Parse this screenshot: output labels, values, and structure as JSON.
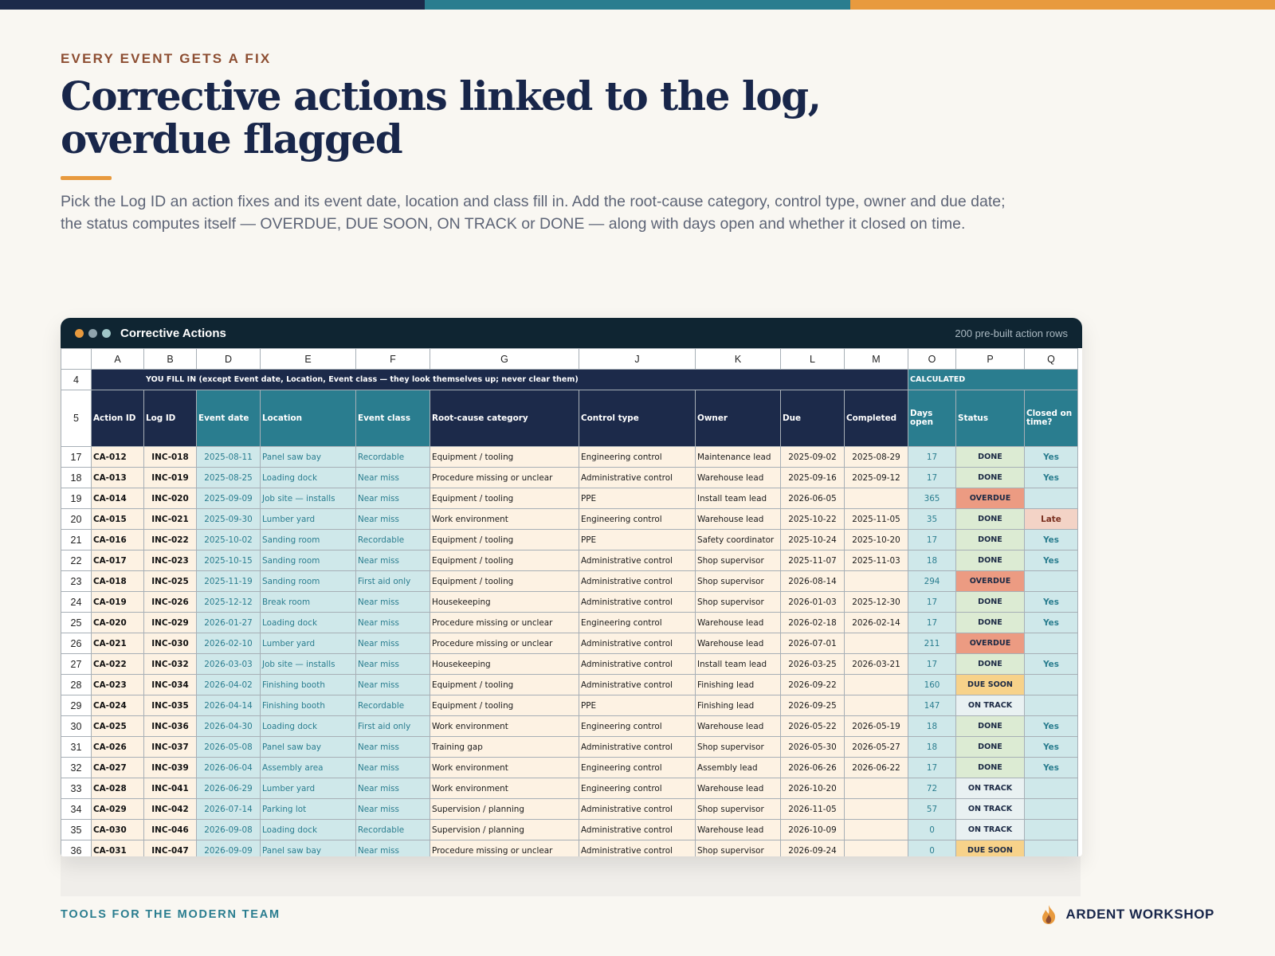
{
  "colors": {
    "navy": "#1c2a4a",
    "teal": "#2a7d8f",
    "orange": "#e89a3e",
    "input_fill": "#fdf2e3",
    "lookup_fill": "#cfe8ea"
  },
  "page": {
    "eyebrow": "EVERY EVENT GETS A FIX",
    "title": "Corrective actions linked to the log, overdue flagged",
    "description": "Pick the Log ID an action fixes and its event date, location and class fill in. Add the root-cause category, control type, owner and due date; the status computes itself — OVERDUE, DUE SOON, ON TRACK or DONE — along with days open and whether it closed on time."
  },
  "window": {
    "title": "Corrective Actions",
    "subtitle": "200 pre-built action rows"
  },
  "sheet": {
    "col_letters": [
      "A",
      "B",
      "D",
      "E",
      "F",
      "G",
      "J",
      "K",
      "L",
      "M",
      "O",
      "P",
      "Q"
    ],
    "band_row": "4",
    "band_fill": "YOU FILL IN  (except Event date, Location, Event class — they look themselves up; never clear them)",
    "band_calc": "CALCULATED",
    "header_row": "5",
    "headers": [
      "Action ID",
      "Log ID",
      "Event date",
      "Location",
      "Event class",
      "Root-cause category",
      "Control type",
      "Owner",
      "Due",
      "Completed",
      "Days open",
      "Status",
      "Closed on time?"
    ],
    "status_colors": {
      "DONE": "#dcebd3",
      "OVERDUE": "#ec9b82",
      "DUE SOON": "#f7d28a",
      "ON TRACK": "#e9f1f2"
    },
    "rows": [
      {
        "row": "17",
        "id": "CA-012",
        "log": "INC-018",
        "date": "2025-08-11",
        "loc": "Panel saw bay",
        "cls": "Recordable",
        "cause": "Equipment / tooling",
        "ctrl": "Engineering control",
        "owner": "Maintenance lead",
        "due": "2025-09-02",
        "done": "2025-08-29",
        "days": "17",
        "status": "DONE",
        "closed": "Yes"
      },
      {
        "row": "18",
        "id": "CA-013",
        "log": "INC-019",
        "date": "2025-08-25",
        "loc": "Loading dock",
        "cls": "Near miss",
        "cause": "Procedure missing or unclear",
        "ctrl": "Administrative control",
        "owner": "Warehouse lead",
        "due": "2025-09-16",
        "done": "2025-09-12",
        "days": "17",
        "status": "DONE",
        "closed": "Yes"
      },
      {
        "row": "19",
        "id": "CA-014",
        "log": "INC-020",
        "date": "2025-09-09",
        "loc": "Job site — installs",
        "cls": "Near miss",
        "cause": "Equipment / tooling",
        "ctrl": "PPE",
        "owner": "Install team lead",
        "due": "2026-06-05",
        "done": "",
        "days": "365",
        "status": "OVERDUE",
        "closed": ""
      },
      {
        "row": "20",
        "id": "CA-015",
        "log": "INC-021",
        "date": "2025-09-30",
        "loc": "Lumber yard",
        "cls": "Near miss",
        "cause": "Work environment",
        "ctrl": "Engineering control",
        "owner": "Warehouse lead",
        "due": "2025-10-22",
        "done": "2025-11-05",
        "days": "35",
        "status": "DONE",
        "closed": "Late"
      },
      {
        "row": "21",
        "id": "CA-016",
        "log": "INC-022",
        "date": "2025-10-02",
        "loc": "Sanding room",
        "cls": "Recordable",
        "cause": "Equipment / tooling",
        "ctrl": "PPE",
        "owner": "Safety coordinator",
        "due": "2025-10-24",
        "done": "2025-10-20",
        "days": "17",
        "status": "DONE",
        "closed": "Yes"
      },
      {
        "row": "22",
        "id": "CA-017",
        "log": "INC-023",
        "date": "2025-10-15",
        "loc": "Sanding room",
        "cls": "Near miss",
        "cause": "Equipment / tooling",
        "ctrl": "Administrative control",
        "owner": "Shop supervisor",
        "due": "2025-11-07",
        "done": "2025-11-03",
        "days": "18",
        "status": "DONE",
        "closed": "Yes"
      },
      {
        "row": "23",
        "id": "CA-018",
        "log": "INC-025",
        "date": "2025-11-19",
        "loc": "Sanding room",
        "cls": "First aid only",
        "cause": "Equipment / tooling",
        "ctrl": "Administrative control",
        "owner": "Shop supervisor",
        "due": "2026-08-14",
        "done": "",
        "days": "294",
        "status": "OVERDUE",
        "closed": ""
      },
      {
        "row": "24",
        "id": "CA-019",
        "log": "INC-026",
        "date": "2025-12-12",
        "loc": "Break room",
        "cls": "Near miss",
        "cause": "Housekeeping",
        "ctrl": "Administrative control",
        "owner": "Shop supervisor",
        "due": "2026-01-03",
        "done": "2025-12-30",
        "days": "17",
        "status": "DONE",
        "closed": "Yes"
      },
      {
        "row": "25",
        "id": "CA-020",
        "log": "INC-029",
        "date": "2026-01-27",
        "loc": "Loading dock",
        "cls": "Near miss",
        "cause": "Procedure missing or unclear",
        "ctrl": "Engineering control",
        "owner": "Warehouse lead",
        "due": "2026-02-18",
        "done": "2026-02-14",
        "days": "17",
        "status": "DONE",
        "closed": "Yes"
      },
      {
        "row": "26",
        "id": "CA-021",
        "log": "INC-030",
        "date": "2026-02-10",
        "loc": "Lumber yard",
        "cls": "Near miss",
        "cause": "Procedure missing or unclear",
        "ctrl": "Administrative control",
        "owner": "Warehouse lead",
        "due": "2026-07-01",
        "done": "",
        "days": "211",
        "status": "OVERDUE",
        "closed": ""
      },
      {
        "row": "27",
        "id": "CA-022",
        "log": "INC-032",
        "date": "2026-03-03",
        "loc": "Job site — installs",
        "cls": "Near miss",
        "cause": "Housekeeping",
        "ctrl": "Administrative control",
        "owner": "Install team lead",
        "due": "2026-03-25",
        "done": "2026-03-21",
        "days": "17",
        "status": "DONE",
        "closed": "Yes"
      },
      {
        "row": "28",
        "id": "CA-023",
        "log": "INC-034",
        "date": "2026-04-02",
        "loc": "Finishing booth",
        "cls": "Near miss",
        "cause": "Equipment / tooling",
        "ctrl": "Administrative control",
        "owner": "Finishing lead",
        "due": "2026-09-22",
        "done": "",
        "days": "160",
        "status": "DUE SOON",
        "closed": ""
      },
      {
        "row": "29",
        "id": "CA-024",
        "log": "INC-035",
        "date": "2026-04-14",
        "loc": "Finishing booth",
        "cls": "Recordable",
        "cause": "Equipment / tooling",
        "ctrl": "PPE",
        "owner": "Finishing lead",
        "due": "2026-09-25",
        "done": "",
        "days": "147",
        "status": "ON TRACK",
        "closed": ""
      },
      {
        "row": "30",
        "id": "CA-025",
        "log": "INC-036",
        "date": "2026-04-30",
        "loc": "Loading dock",
        "cls": "First aid only",
        "cause": "Work environment",
        "ctrl": "Engineering control",
        "owner": "Warehouse lead",
        "due": "2026-05-22",
        "done": "2026-05-19",
        "days": "18",
        "status": "DONE",
        "closed": "Yes"
      },
      {
        "row": "31",
        "id": "CA-026",
        "log": "INC-037",
        "date": "2026-05-08",
        "loc": "Panel saw bay",
        "cls": "Near miss",
        "cause": "Training gap",
        "ctrl": "Administrative control",
        "owner": "Shop supervisor",
        "due": "2026-05-30",
        "done": "2026-05-27",
        "days": "18",
        "status": "DONE",
        "closed": "Yes"
      },
      {
        "row": "32",
        "id": "CA-027",
        "log": "INC-039",
        "date": "2026-06-04",
        "loc": "Assembly area",
        "cls": "Near miss",
        "cause": "Work environment",
        "ctrl": "Engineering control",
        "owner": "Assembly lead",
        "due": "2026-06-26",
        "done": "2026-06-22",
        "days": "17",
        "status": "DONE",
        "closed": "Yes"
      },
      {
        "row": "33",
        "id": "CA-028",
        "log": "INC-041",
        "date": "2026-06-29",
        "loc": "Lumber yard",
        "cls": "Near miss",
        "cause": "Work environment",
        "ctrl": "Engineering control",
        "owner": "Warehouse lead",
        "due": "2026-10-20",
        "done": "",
        "days": "72",
        "status": "ON TRACK",
        "closed": ""
      },
      {
        "row": "34",
        "id": "CA-029",
        "log": "INC-042",
        "date": "2026-07-14",
        "loc": "Parking lot",
        "cls": "Near miss",
        "cause": "Supervision / planning",
        "ctrl": "Administrative control",
        "owner": "Shop supervisor",
        "due": "2026-11-05",
        "done": "",
        "days": "57",
        "status": "ON TRACK",
        "closed": ""
      },
      {
        "row": "35",
        "id": "CA-030",
        "log": "INC-046",
        "date": "2026-09-08",
        "loc": "Loading dock",
        "cls": "Recordable",
        "cause": "Supervision / planning",
        "ctrl": "Administrative control",
        "owner": "Warehouse lead",
        "due": "2026-10-09",
        "done": "",
        "days": "0",
        "status": "ON TRACK",
        "closed": ""
      },
      {
        "row": "36",
        "id": "CA-031",
        "log": "INC-047",
        "date": "2026-09-09",
        "loc": "Panel saw bay",
        "cls": "Near miss",
        "cause": "Procedure missing or unclear",
        "ctrl": "Administrative control",
        "owner": "Shop supervisor",
        "due": "2026-09-24",
        "done": "",
        "days": "0",
        "status": "DUE SOON",
        "closed": ""
      }
    ]
  },
  "footer": {
    "tagline": "TOOLS FOR THE MODERN TEAM",
    "brand": "ARDENT WORKSHOP"
  }
}
